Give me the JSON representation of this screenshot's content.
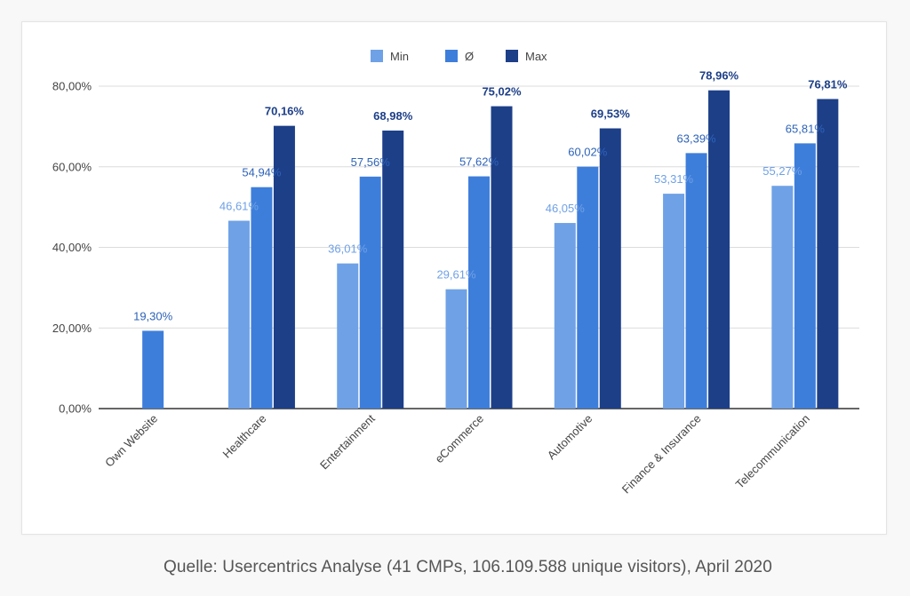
{
  "source": "Quelle: Usercentrics Analyse (41 CMPs, 106.109.588 unique visitors), April 2020",
  "colors": {
    "min": "#6fa1e6",
    "avg": "#3e7edb",
    "max": "#1d3f88",
    "grid": "#dcdcdc",
    "axis": "#333333",
    "tick_text": "#444444"
  },
  "chart_data": {
    "type": "bar",
    "title": "",
    "xlabel": "",
    "ylabel": "",
    "ylim": [
      0,
      80
    ],
    "yticks": [
      0,
      20,
      40,
      60,
      80
    ],
    "ytick_labels": [
      "0,00%",
      "20,00%",
      "40,00%",
      "60,00%",
      "80,00%"
    ],
    "legend_position": "top-center",
    "categories": [
      "Own Website",
      "Healthcare",
      "Entertainment",
      "eCommerce",
      "Automotive",
      "Finance & Insurance",
      "Telecommunication"
    ],
    "series": [
      {
        "key": "min",
        "name": "Min",
        "values": [
          null,
          46.61,
          36.01,
          29.61,
          46.05,
          53.31,
          55.27
        ],
        "labels": [
          null,
          "46,61%",
          "36,01%",
          "29,61%",
          "46,05%",
          "53,31%",
          "55,27%"
        ]
      },
      {
        "key": "avg",
        "name": "Ø",
        "values": [
          19.3,
          54.94,
          57.56,
          57.62,
          60.02,
          63.39,
          65.81
        ],
        "labels": [
          "19,30%",
          "54,94%",
          "57,56%",
          "57,62%",
          "60,02%",
          "63,39%",
          "65,81%"
        ]
      },
      {
        "key": "max",
        "name": "Max",
        "values": [
          null,
          70.16,
          68.98,
          75.02,
          69.53,
          78.96,
          76.81
        ],
        "labels": [
          null,
          "70,16%",
          "68,98%",
          "75,02%",
          "69,53%",
          "78,96%",
          "76,81%"
        ]
      }
    ]
  }
}
